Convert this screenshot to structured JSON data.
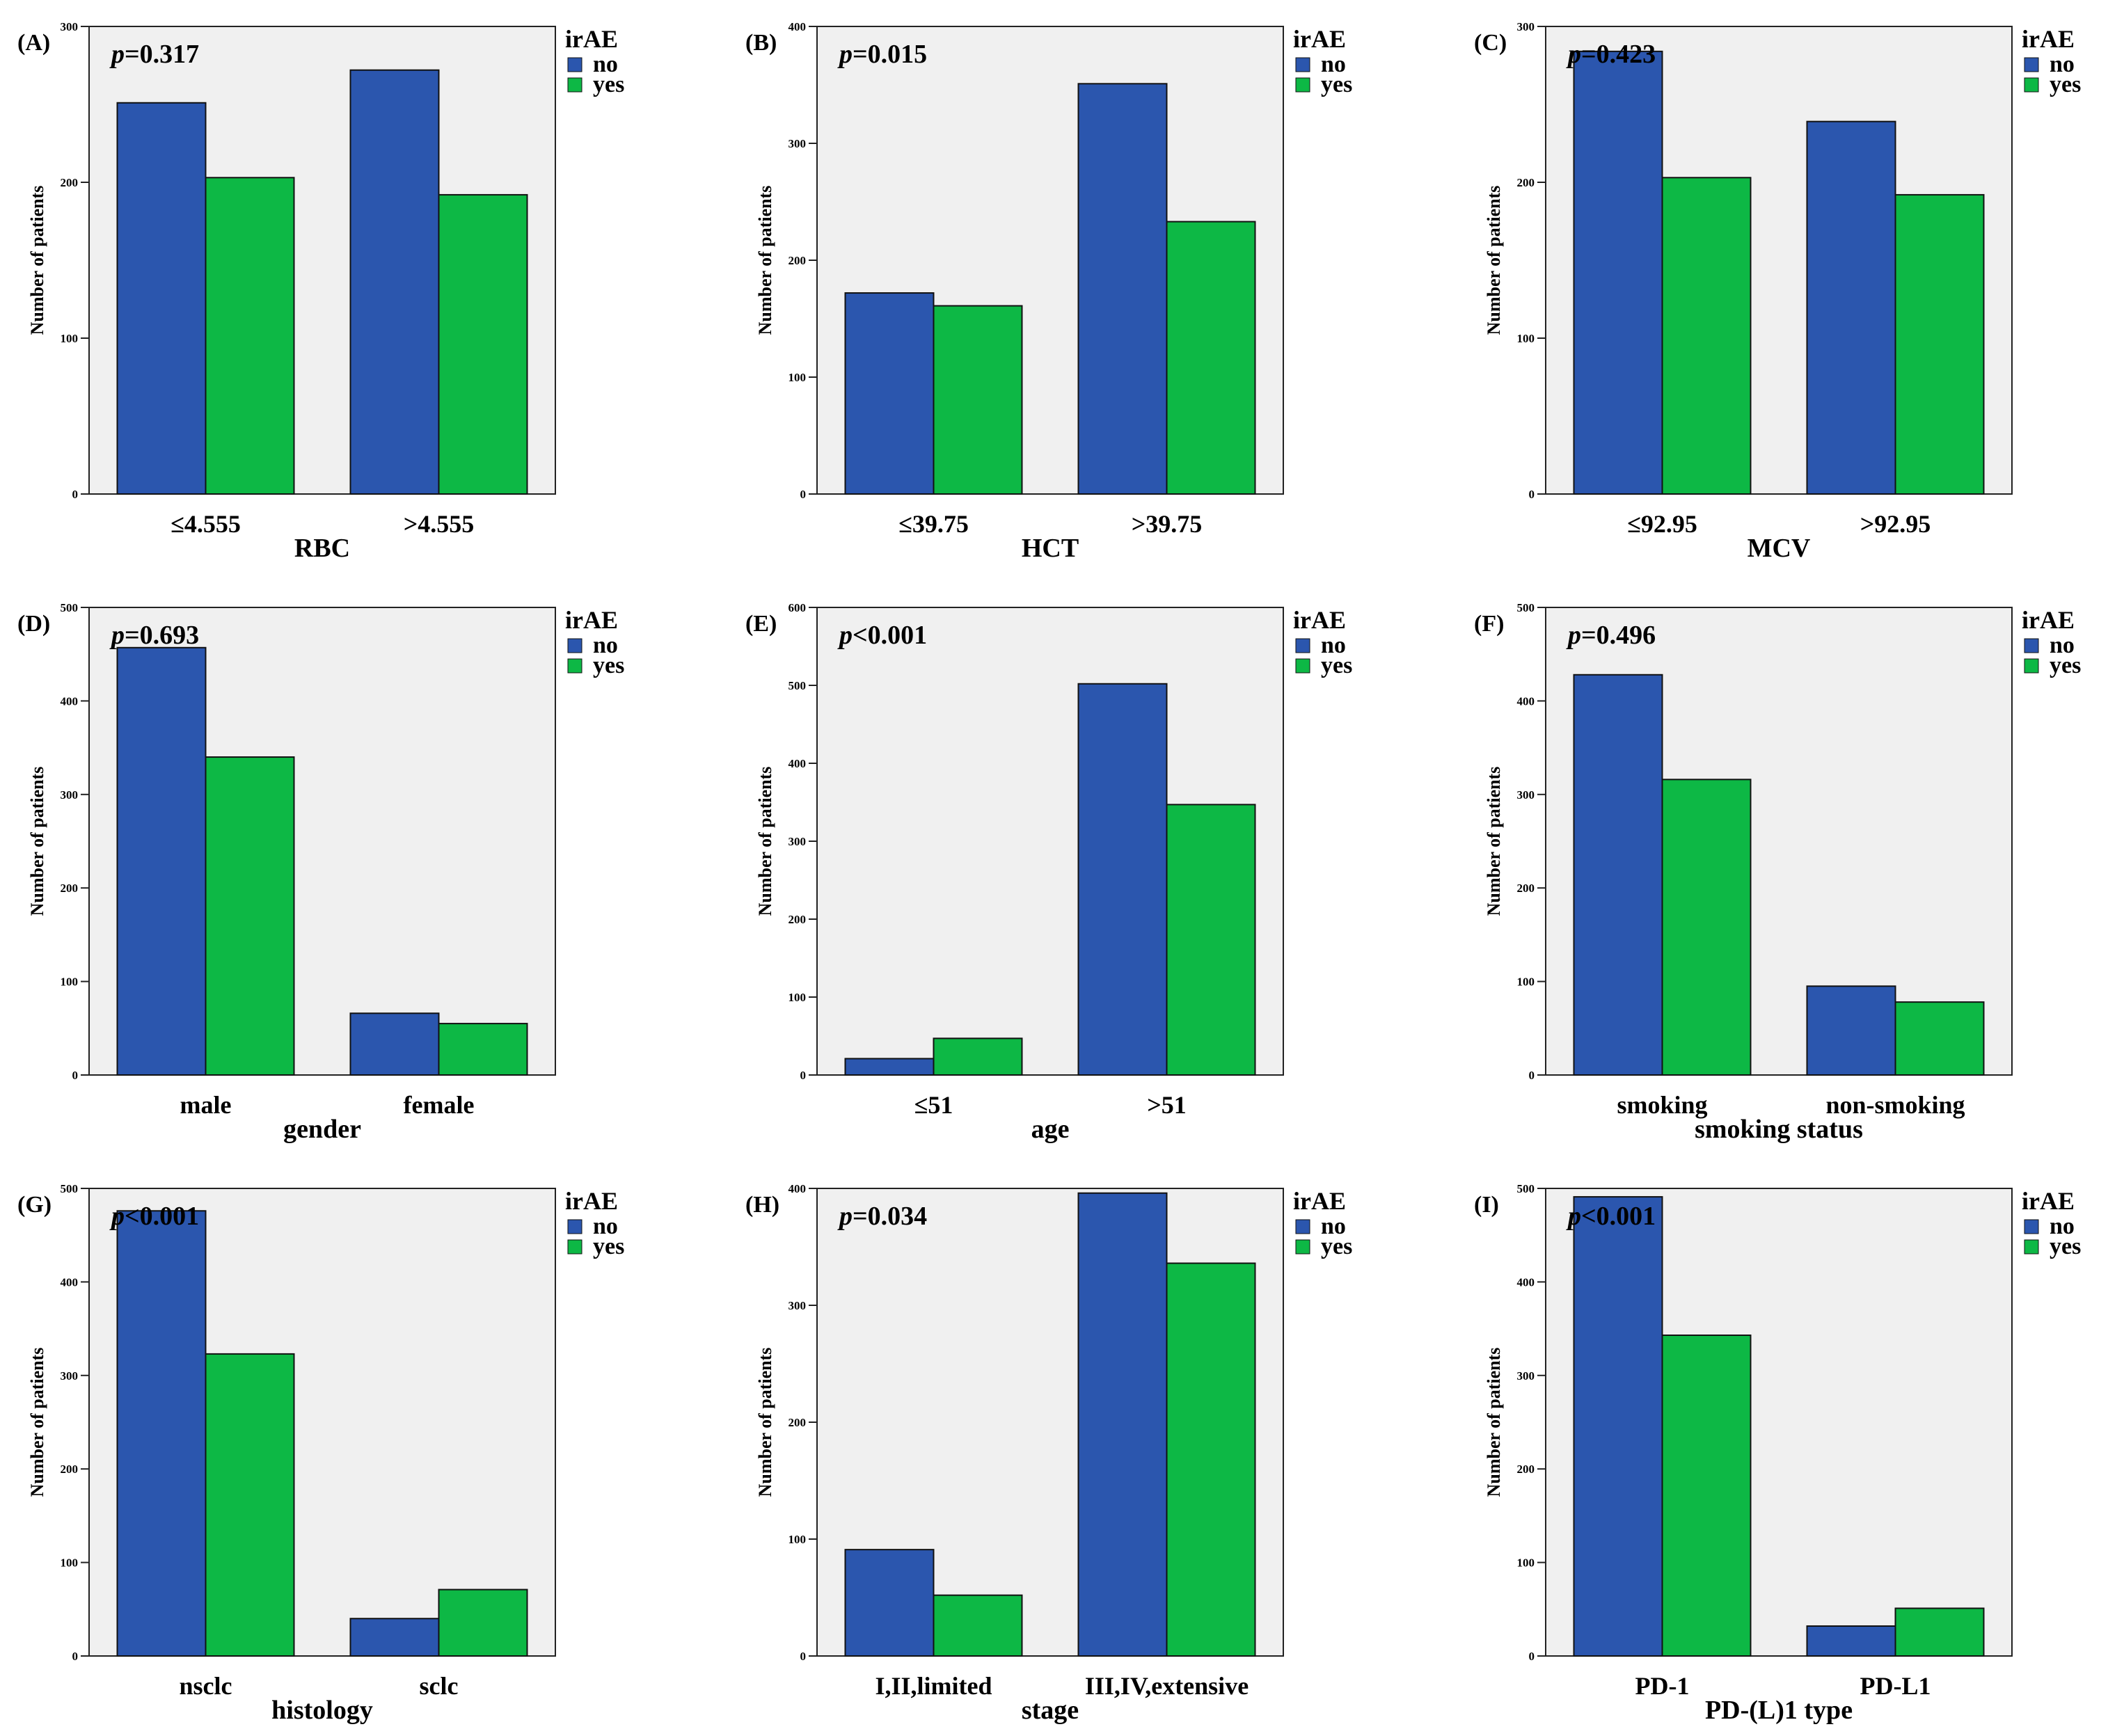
{
  "legend_title": "irAE",
  "colors": {
    "no": "#2b56ae",
    "yes": "#0db845"
  },
  "chart_data": [
    {
      "panel": "(A)",
      "type": "bar",
      "pvalue": "p=0.317",
      "xlabel": "RBC",
      "ylabel": "Number of patients",
      "categories": [
        "≤4.555",
        ">4.555"
      ],
      "ylim": [
        0,
        300
      ],
      "yticks": [
        0,
        100,
        200,
        300
      ],
      "series": [
        {
          "name": "no",
          "values": [
            251,
            272
          ]
        },
        {
          "name": "yes",
          "values": [
            203,
            192
          ]
        }
      ],
      "legend": "top-right",
      "grid": false
    },
    {
      "panel": "(B)",
      "type": "bar",
      "pvalue": "p=0.015",
      "xlabel": "HCT",
      "ylabel": "Number of patients",
      "categories": [
        "≤39.75",
        ">39.75"
      ],
      "ylim": [
        0,
        400
      ],
      "yticks": [
        0,
        100,
        200,
        300,
        400
      ],
      "series": [
        {
          "name": "no",
          "values": [
            172,
            351
          ]
        },
        {
          "name": "yes",
          "values": [
            161,
            233
          ]
        }
      ],
      "legend": "top-right",
      "grid": false
    },
    {
      "panel": "(C)",
      "type": "bar",
      "pvalue": "p=0.423",
      "xlabel": "MCV",
      "ylabel": "Number of patients",
      "categories": [
        "≤92.95",
        ">92.95"
      ],
      "ylim": [
        0,
        300
      ],
      "yticks": [
        0,
        100,
        200,
        300
      ],
      "series": [
        {
          "name": "no",
          "values": [
            284,
            239
          ]
        },
        {
          "name": "yes",
          "values": [
            203,
            192
          ]
        }
      ],
      "legend": "top-right",
      "grid": false
    },
    {
      "panel": "(D)",
      "type": "bar",
      "pvalue": "p=0.693",
      "xlabel": "gender",
      "ylabel": "Number of patients",
      "categories": [
        "male",
        "female"
      ],
      "ylim": [
        0,
        500
      ],
      "yticks": [
        0,
        100,
        200,
        300,
        400,
        500
      ],
      "series": [
        {
          "name": "no",
          "values": [
            457,
            66
          ]
        },
        {
          "name": "yes",
          "values": [
            340,
            55
          ]
        }
      ],
      "legend": "top-right",
      "grid": false
    },
    {
      "panel": "(E)",
      "type": "bar",
      "pvalue": "p<0.001",
      "xlabel": "age",
      "ylabel": "Number of patients",
      "categories": [
        "≤51",
        ">51"
      ],
      "ylim": [
        0,
        600
      ],
      "yticks": [
        0,
        100,
        200,
        300,
        400,
        500,
        600
      ],
      "series": [
        {
          "name": "no",
          "values": [
            21,
            502
          ]
        },
        {
          "name": "yes",
          "values": [
            47,
            347
          ]
        }
      ],
      "legend": "top-right",
      "grid": false
    },
    {
      "panel": "(F)",
      "type": "bar",
      "pvalue": "p=0.496",
      "xlabel": "smoking status",
      "ylabel": "Number of patients",
      "categories": [
        "smoking",
        "non-smoking"
      ],
      "ylim": [
        0,
        500
      ],
      "yticks": [
        0,
        100,
        200,
        300,
        400,
        500
      ],
      "series": [
        {
          "name": "no",
          "values": [
            428,
            95
          ]
        },
        {
          "name": "yes",
          "values": [
            316,
            78
          ]
        }
      ],
      "legend": "top-right",
      "grid": false
    },
    {
      "panel": "(G)",
      "type": "bar",
      "pvalue": "p<0.001",
      "xlabel": "histology",
      "ylabel": "Number of patients",
      "categories": [
        "nsclc",
        "sclc"
      ],
      "ylim": [
        0,
        500
      ],
      "yticks": [
        0,
        100,
        200,
        300,
        400,
        500
      ],
      "series": [
        {
          "name": "no",
          "values": [
            476,
            40
          ]
        },
        {
          "name": "yes",
          "values": [
            323,
            71
          ]
        }
      ],
      "legend": "top-right",
      "grid": false
    },
    {
      "panel": "(H)",
      "type": "bar",
      "pvalue": "p=0.034",
      "xlabel": "stage",
      "ylabel": "Number of patients",
      "categories": [
        "I,II,limited",
        "III,IV,extensive"
      ],
      "ylim": [
        0,
        400
      ],
      "yticks": [
        0,
        100,
        200,
        300,
        400
      ],
      "series": [
        {
          "name": "no",
          "values": [
            91,
            396
          ]
        },
        {
          "name": "yes",
          "values": [
            52,
            336
          ]
        }
      ],
      "legend": "top-right",
      "grid": false
    },
    {
      "panel": "(I)",
      "type": "bar",
      "pvalue": "p<0.001",
      "xlabel": "PD-(L)1 type",
      "ylabel": "Number of patients",
      "categories": [
        "PD-1",
        "PD-L1"
      ],
      "ylim": [
        0,
        500
      ],
      "yticks": [
        0,
        100,
        200,
        300,
        400,
        500
      ],
      "series": [
        {
          "name": "no",
          "values": [
            491,
            32
          ]
        },
        {
          "name": "yes",
          "values": [
            343,
            51
          ]
        }
      ],
      "legend": "top-right",
      "grid": false
    }
  ]
}
